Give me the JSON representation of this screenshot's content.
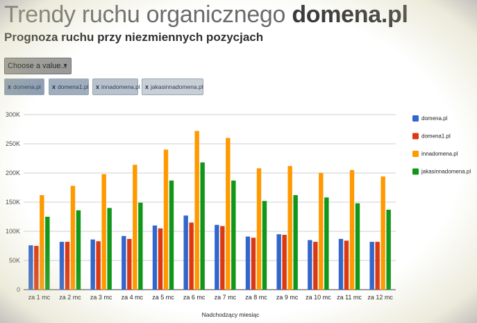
{
  "header": {
    "title_main": "Trendy ruchu organicznego",
    "title_domain": "domena.pl",
    "subtitle": "Prognoza ruchu przy niezmiennych pozycjach"
  },
  "filter": {
    "select_label": "Choose a value...",
    "chips": [
      {
        "remove": "x",
        "label": "domena.pl"
      },
      {
        "remove": "x",
        "label": "domena1.pl"
      },
      {
        "remove": "x",
        "label": "innadomena.pl"
      },
      {
        "remove": "x",
        "label": "jakasinnadomena.pl"
      }
    ]
  },
  "chart_data": {
    "type": "bar",
    "xlabel": "Nadchodzący miesiąc",
    "ylabel": "",
    "ylim": [
      0,
      300000
    ],
    "yticks": [
      0,
      50000,
      100000,
      150000,
      200000,
      250000,
      300000
    ],
    "ytick_labels": [
      "0",
      "50K",
      "100K",
      "150K",
      "200K",
      "250K",
      "300K"
    ],
    "grid": true,
    "legend_position": "right",
    "categories": [
      "za 1 mc",
      "za 2 mc",
      "za 3 mc",
      "za 4 mc",
      "za 5 mc",
      "za 6 mc",
      "za 7 mc",
      "za 8 mc",
      "za 9 mc",
      "za 10 mc",
      "za 11 mc",
      "za 12 mc"
    ],
    "series": [
      {
        "name": "domena.pl",
        "color": "#3366cc",
        "values": [
          76000,
          82000,
          86000,
          92000,
          110000,
          127000,
          111000,
          91000,
          95000,
          85000,
          87000,
          82000
        ]
      },
      {
        "name": "domena1.pl",
        "color": "#dc3912",
        "values": [
          75000,
          82000,
          83000,
          87000,
          105000,
          115000,
          109000,
          89000,
          94000,
          82000,
          84000,
          82000
        ]
      },
      {
        "name": "innadomena.pl",
        "color": "#ff9900",
        "values": [
          162000,
          178000,
          198000,
          214000,
          240000,
          272000,
          260000,
          208000,
          212000,
          200000,
          205000,
          194000
        ]
      },
      {
        "name": "jakasinnadomena.pl",
        "color": "#109618",
        "values": [
          125000,
          136000,
          140000,
          149000,
          187000,
          218000,
          187000,
          152000,
          162000,
          158000,
          148000,
          137000
        ]
      }
    ]
  }
}
